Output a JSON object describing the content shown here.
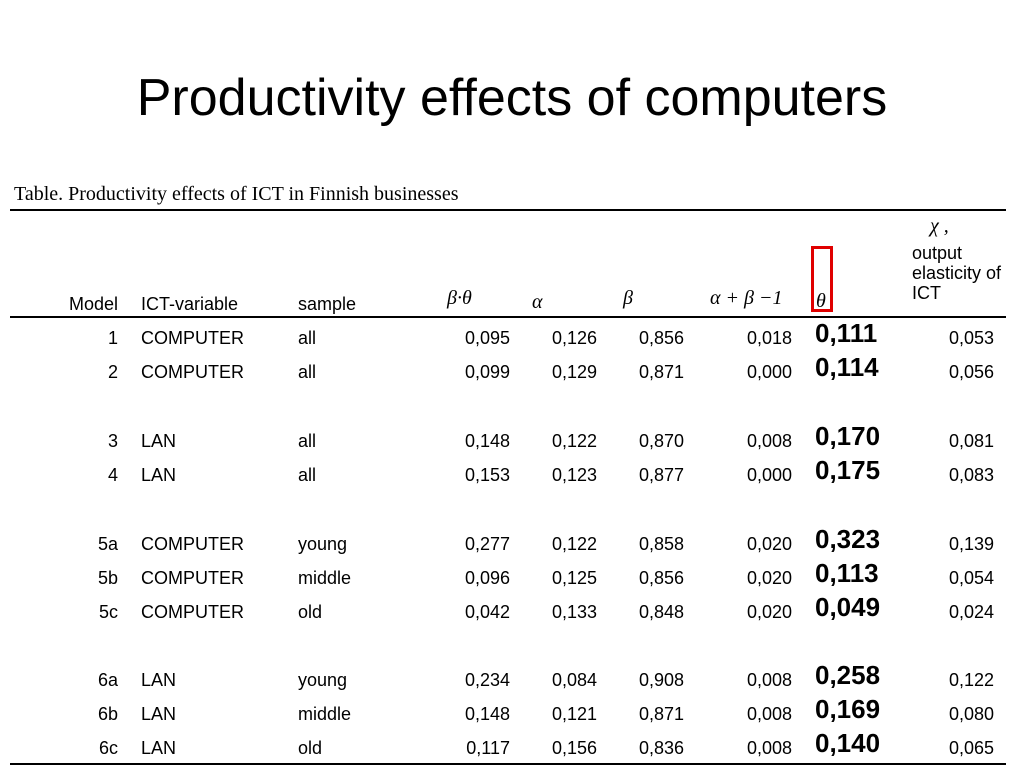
{
  "slide": {
    "title": "Productivity effects of computers"
  },
  "table": {
    "caption": "Table. Productivity effects of ICT in Finnish businesses",
    "headers": {
      "model": "Model",
      "ict_variable": "ICT-variable",
      "sample": "sample",
      "beta_theta": "β·θ",
      "alpha": "α",
      "beta": "β",
      "alpha_beta_minus_1": "α + β −1",
      "theta": "θ",
      "chi": "χ ,",
      "elasticity": "output elasticity of ICT"
    },
    "rows": [
      {
        "model": "1",
        "ict": "COMPUTER",
        "sample": "all",
        "beta_theta": "0,095",
        "alpha": "0,126",
        "beta": "0,856",
        "ab1": "0,018",
        "theta": "0,111",
        "chi": "0,053"
      },
      {
        "model": "2",
        "ict": "COMPUTER",
        "sample": "all",
        "beta_theta": "0,099",
        "alpha": "0,129",
        "beta": "0,871",
        "ab1": "0,000",
        "theta": "0,114",
        "chi": "0,056"
      },
      {
        "model": "3",
        "ict": "LAN",
        "sample": "all",
        "beta_theta": "0,148",
        "alpha": "0,122",
        "beta": "0,870",
        "ab1": "0,008",
        "theta": "0,170",
        "chi": "0,081"
      },
      {
        "model": "4",
        "ict": "LAN",
        "sample": "all",
        "beta_theta": "0,153",
        "alpha": "0,123",
        "beta": "0,877",
        "ab1": "0,000",
        "theta": "0,175",
        "chi": "0,083"
      },
      {
        "model": "5a",
        "ict": "COMPUTER",
        "sample": "young",
        "beta_theta": "0,277",
        "alpha": "0,122",
        "beta": "0,858",
        "ab1": "0,020",
        "theta": "0,323",
        "chi": "0,139"
      },
      {
        "model": "5b",
        "ict": "COMPUTER",
        "sample": "middle",
        "beta_theta": "0,096",
        "alpha": "0,125",
        "beta": "0,856",
        "ab1": "0,020",
        "theta": "0,113",
        "chi": "0,054"
      },
      {
        "model": "5c",
        "ict": "COMPUTER",
        "sample": "old",
        "beta_theta": "0,042",
        "alpha": "0,133",
        "beta": "0,848",
        "ab1": "0,020",
        "theta": "0,049",
        "chi": "0,024"
      },
      {
        "model": "6a",
        "ict": "LAN",
        "sample": "young",
        "beta_theta": "0,234",
        "alpha": "0,084",
        "beta": "0,908",
        "ab1": "0,008",
        "theta": "0,258",
        "chi": "0,122"
      },
      {
        "model": "6b",
        "ict": "LAN",
        "sample": "middle",
        "beta_theta": "0,148",
        "alpha": "0,121",
        "beta": "0,871",
        "ab1": "0,008",
        "theta": "0,169",
        "chi": "0,080"
      },
      {
        "model": "6c",
        "ict": "LAN",
        "sample": "old",
        "beta_theta": "0,117",
        "alpha": "0,156",
        "beta": "0,836",
        "ab1": "0,008",
        "theta": "0,140",
        "chi": "0,065"
      }
    ],
    "highlight_color": "#e00000"
  }
}
